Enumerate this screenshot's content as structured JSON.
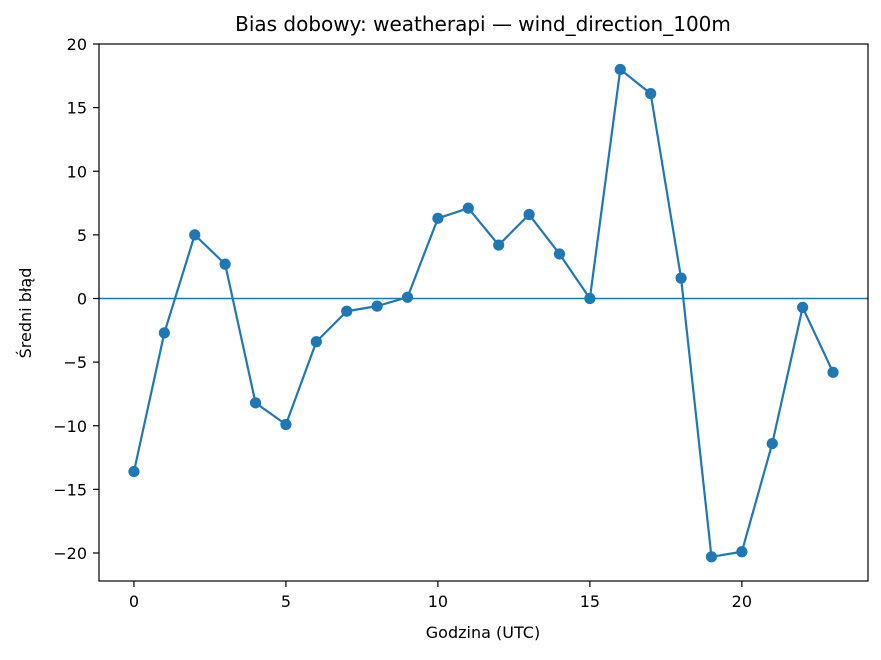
{
  "chart_data": {
    "type": "line",
    "title": "Bias dobowy: weatherapi — wind_direction_100m",
    "xlabel": "Godzina (UTC)",
    "ylabel": "Średni błąd",
    "x": [
      0,
      1,
      2,
      3,
      4,
      5,
      6,
      7,
      8,
      9,
      10,
      11,
      12,
      13,
      14,
      15,
      16,
      17,
      18,
      19,
      20,
      21,
      22,
      23
    ],
    "series": [
      {
        "values": [
          -13.6,
          -2.7,
          5.0,
          2.7,
          -8.2,
          -9.9,
          -3.4,
          -1.0,
          -0.6,
          0.1,
          6.3,
          7.1,
          4.2,
          6.6,
          3.5,
          0.0,
          18.0,
          16.1,
          1.6,
          -20.3,
          -19.9,
          -11.4,
          -0.7,
          -5.8
        ]
      }
    ],
    "xlim": [
      -1.15,
      24.15
    ],
    "ylim": [
      -22.2,
      20
    ],
    "xticks": [
      0,
      5,
      10,
      15,
      20
    ],
    "yticks": [
      20,
      15,
      10,
      5,
      0,
      -5,
      -10,
      -15,
      -20
    ],
    "xtick_labels": [
      "0",
      "5",
      "10",
      "15",
      "20"
    ],
    "ytick_labels": [
      "20",
      "15",
      "10",
      "5",
      "0",
      "−5",
      "−10",
      "−15",
      "−20"
    ],
    "reference_line_y": 0,
    "grid": false,
    "colors": {
      "series": "#1f77b4",
      "reference_line": "#1f77b4"
    }
  }
}
